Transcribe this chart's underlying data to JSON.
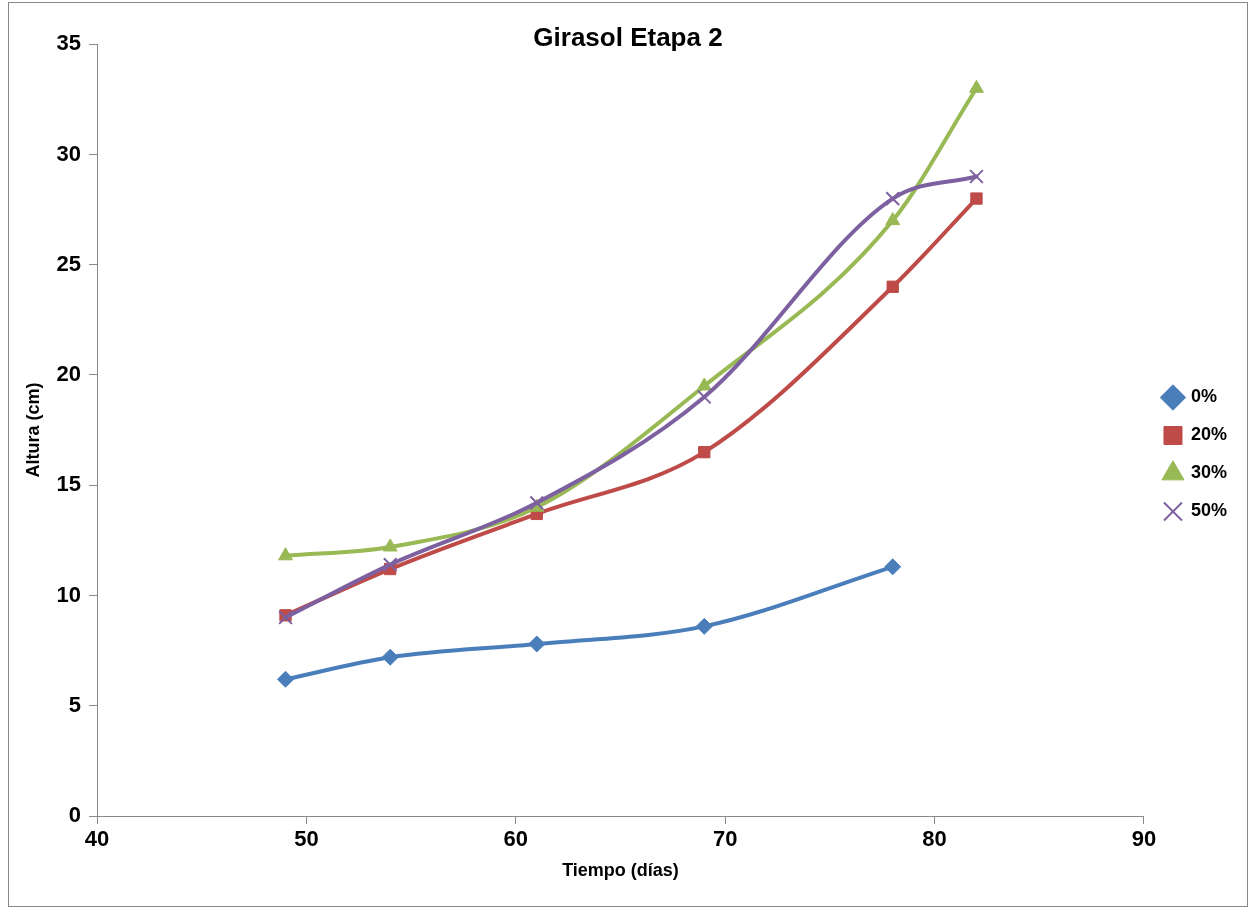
{
  "chart_data": {
    "type": "line",
    "title": "Girasol Etapa 2",
    "xlabel": "Tiempo (días)",
    "ylabel": "Altura (cm)",
    "x": [
      49,
      54,
      61,
      69,
      78,
      82
    ],
    "series": [
      {
        "name": "0%",
        "color": "#4a7ebb",
        "marker": "diamond",
        "values": [
          6.2,
          7.2,
          7.8,
          8.6,
          11.3,
          null
        ]
      },
      {
        "name": "20%",
        "color": "#be4b48",
        "marker": "square",
        "values": [
          9.1,
          11.2,
          13.7,
          16.5,
          24,
          28
        ]
      },
      {
        "name": "30%",
        "color": "#98b954",
        "marker": "triangle",
        "values": [
          11.8,
          12.2,
          14,
          19.5,
          27,
          33
        ]
      },
      {
        "name": "50%",
        "color": "#7d60a0",
        "marker": "cross",
        "values": [
          9,
          11.4,
          14.2,
          19,
          28,
          29
        ]
      }
    ],
    "xlim": [
      40,
      90
    ],
    "xticks": [
      40,
      50,
      60,
      70,
      80,
      90
    ],
    "ylim": [
      0,
      35
    ],
    "yticks": [
      0,
      5,
      10,
      15,
      20,
      25,
      30,
      35
    ],
    "grid": false,
    "legend": "right",
    "line_style": "solid"
  }
}
